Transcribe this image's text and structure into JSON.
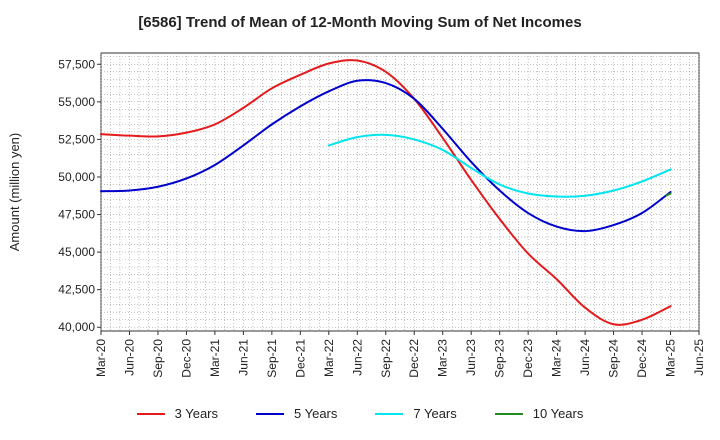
{
  "chart_data": {
    "type": "line",
    "title": "[6586]  Trend of Mean of 12-Month Moving Sum of Net Incomes",
    "ylabel": "Amount (million yen)",
    "xlabel": "",
    "ylim": [
      39750,
      58250
    ],
    "yticks": [
      40000,
      42500,
      45000,
      47500,
      50000,
      52500,
      55000,
      57500
    ],
    "ytick_labels": [
      "40,000",
      "42,500",
      "45,000",
      "47,500",
      "50,000",
      "52,500",
      "55,000",
      "57,500"
    ],
    "categories": [
      "Mar-20",
      "Jun-20",
      "Sep-20",
      "Dec-20",
      "Mar-21",
      "Jun-21",
      "Sep-21",
      "Dec-21",
      "Mar-22",
      "Jun-22",
      "Sep-22",
      "Dec-22",
      "Mar-23",
      "Jun-23",
      "Sep-23",
      "Dec-23",
      "Mar-24",
      "Jun-24",
      "Sep-24",
      "Dec-24",
      "Mar-25",
      "Jun-25"
    ],
    "grid": true,
    "legend_position": "bottom",
    "series": [
      {
        "name": "3 Years",
        "color": "#e41a1c",
        "values": [
          52850,
          52750,
          52700,
          52950,
          53500,
          54600,
          55900,
          56800,
          57550,
          57750,
          57000,
          55200,
          52600,
          49800,
          47200,
          44900,
          43200,
          41300,
          40200,
          40500,
          41400,
          null
        ]
      },
      {
        "name": "5 Years",
        "color": "#0000cc",
        "values": [
          49050,
          49100,
          49350,
          49900,
          50800,
          52100,
          53500,
          54700,
          55700,
          56400,
          56250,
          55200,
          53200,
          51000,
          49100,
          47600,
          46700,
          46400,
          46800,
          47600,
          49000,
          null
        ]
      },
      {
        "name": "7 Years",
        "color": "#00e5ee",
        "values": [
          null,
          null,
          null,
          null,
          null,
          null,
          null,
          null,
          52100,
          52650,
          52800,
          52500,
          51800,
          50600,
          49500,
          48900,
          48700,
          48750,
          49100,
          49700,
          50500,
          null
        ]
      },
      {
        "name": "10 Years",
        "color": "#228b22",
        "values": [
          null,
          null,
          null,
          null,
          null,
          null,
          null,
          null,
          null,
          null,
          null,
          null,
          null,
          null,
          null,
          null,
          null,
          null,
          null,
          null,
          48900,
          null
        ]
      }
    ]
  }
}
